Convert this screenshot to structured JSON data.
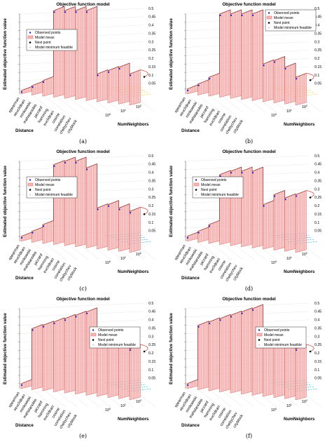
{
  "figure": {
    "panels": [
      {
        "caption": "(a)",
        "highlight": "#f0c419"
      },
      {
        "caption": "(b)",
        "highlight": "#f0c419"
      },
      {
        "caption": "(c)",
        "highlight": "#00a0e0"
      },
      {
        "caption": "(d)",
        "highlight": "#00a0e0"
      },
      {
        "caption": "(e)",
        "highlight": "#00c0c0"
      },
      {
        "caption": "(f)",
        "highlight": "#00c0c0"
      }
    ]
  },
  "chart_data": [
    {
      "type": "surface3d",
      "title": "Objective function model",
      "zlabel": "Estimated objective function value",
      "xlabel": "Distance",
      "ylabel": "NumNeighbors",
      "x_categories": [
        "spearman",
        "seuclidean",
        "minkowski",
        "mahalanobis",
        "jaccard",
        "hamming",
        "euclidean",
        "cosine",
        "correlation",
        "chebychev",
        "cityblock"
      ],
      "y_ticks": [
        "10^0",
        "10^1",
        "10^2"
      ],
      "z_ticks": [
        "0.05",
        "0.1",
        "0.15",
        "0.2",
        "0.25",
        "0.3",
        "0.35",
        "0.4",
        "0.45",
        "0.5"
      ],
      "zlim": [
        0.02,
        0.5
      ],
      "legend": [
        "Observed points",
        "Model mean",
        "Next point",
        "Model minimum feasible"
      ],
      "legend_position": "left",
      "colors": {
        "surface": "#d9534f",
        "surface_fill": "#f7b5b3",
        "points": "#1f1fd0"
      },
      "surface_peaks": [
        0.04,
        0.07,
        0.1,
        0.52,
        0.52,
        0.52,
        0.52,
        0.14,
        0.16,
        0.18,
        0.14
      ]
    },
    {
      "type": "surface3d",
      "title": "Objective function model",
      "zlabel": "Estimated objective function value",
      "xlabel": "Distance",
      "ylabel": "NumNeighbors",
      "x_categories": [
        "spearman",
        "seuclidean",
        "minkowski",
        "mahalanobis",
        "jaccard",
        "hamming",
        "euclidean",
        "cosine",
        "correlation",
        "chebychev",
        "cityblock"
      ],
      "y_ticks": [
        "10^0",
        "10^1",
        "10^2"
      ],
      "z_ticks": [
        "0.05",
        "0.1",
        "0.15",
        "0.2",
        "0.25",
        "0.3",
        "0.35",
        "0.4",
        "0.45",
        "0.5"
      ],
      "zlim": [
        0.02,
        0.5
      ],
      "legend": [
        "Observed points",
        "Model mean",
        "Next point",
        "Model minimum feasible"
      ],
      "legend_position": "top-right",
      "colors": {
        "surface": "#d9534f",
        "surface_fill": "#f7b5b3",
        "points": "#1f1fd0"
      },
      "surface_peaks": [
        0.05,
        0.08,
        0.12,
        0.5,
        0.5,
        0.5,
        0.5,
        0.2,
        0.22,
        0.18,
        0.12
      ]
    },
    {
      "type": "surface3d",
      "title": "Objective function model",
      "zlabel": "Estimated objective function value",
      "xlabel": "Distance",
      "ylabel": "NumNeighbors",
      "x_categories": [
        "spearman",
        "seuclidean",
        "minkowski",
        "mahalanobis",
        "jaccard",
        "hamming",
        "euclidean",
        "cosine",
        "correlation",
        "chebychev",
        "cityblock"
      ],
      "y_ticks": [
        "10^0",
        "10^1",
        "10^2"
      ],
      "z_ticks": [
        "0.05",
        "0.1",
        "0.15",
        "0.2",
        "0.25",
        "0.3",
        "0.35",
        "0.4",
        "0.45",
        "0.5"
      ],
      "zlim": [
        0.02,
        0.5
      ],
      "legend": [
        "Observed points",
        "Model mean",
        "Next point",
        "Model minimum feasible"
      ],
      "legend_position": "left",
      "colors": {
        "surface": "#d9534f",
        "surface_fill": "#f7b5b3",
        "points": "#1f1fd0"
      },
      "surface_peaks": [
        0.05,
        0.08,
        0.12,
        0.48,
        0.5,
        0.5,
        0.46,
        0.22,
        0.24,
        0.22,
        0.2
      ]
    },
    {
      "type": "surface3d",
      "title": "Objective function model",
      "zlabel": "Estimated objective function value",
      "xlabel": "Distance",
      "ylabel": "NumNeighbors",
      "x_categories": [
        "spearman",
        "seuclidean",
        "minkowski",
        "mahalanobis",
        "jaccard",
        "hamming",
        "euclidean",
        "cosine",
        "correlation",
        "chebychev",
        "cityblock"
      ],
      "y_ticks": [
        "10^0",
        "10^1",
        "10^2"
      ],
      "z_ticks": [
        "0.05",
        "0.1",
        "0.15",
        "0.2",
        "0.25",
        "0.3",
        "0.35",
        "0.4",
        "0.45",
        "0.5"
      ],
      "zlim": [
        0.02,
        0.5
      ],
      "legend": [
        "Observed points",
        "Model mean",
        "Next point",
        "Model minimum feasible"
      ],
      "legend_position": "left",
      "colors": {
        "surface": "#d9534f",
        "surface_fill": "#f7b5b3",
        "points": "#1f1fd0"
      },
      "surface_peaks": [
        0.05,
        0.08,
        0.12,
        0.42,
        0.44,
        0.44,
        0.44,
        0.24,
        0.3,
        0.28,
        0.3
      ]
    },
    {
      "type": "surface3d",
      "title": "Objective function model",
      "zlabel": "Estimated objective function value",
      "xlabel": "Distance",
      "ylabel": "NumNeighbors",
      "x_categories": [
        "spearman",
        "seuclidean",
        "minkowski",
        "mahalanobis",
        "jaccard",
        "hamming",
        "euclidean",
        "cosine",
        "correlation",
        "chebychev",
        "cityblock"
      ],
      "y_ticks": [
        "10^0",
        "10^1",
        "10^2"
      ],
      "z_ticks": [
        "0.05",
        "0.1",
        "0.15",
        "0.2",
        "0.25",
        "0.3",
        "0.35",
        "0.4",
        "0.45",
        "0.5"
      ],
      "zlim": [
        0.02,
        0.5
      ],
      "legend": [
        "Observed points",
        "Model mean",
        "Next point",
        "Model minimum feasible"
      ],
      "legend_position": "right",
      "colors": {
        "surface": "#d9534f",
        "surface_fill": "#f7b5b3",
        "points": "#1f1fd0"
      },
      "surface_peaks": [
        0.05,
        0.38,
        0.4,
        0.42,
        0.44,
        0.46,
        0.48,
        0.3,
        0.28,
        0.3,
        0.26
      ]
    },
    {
      "type": "surface3d",
      "title": "Objective function model",
      "zlabel": "Estimated objective function value",
      "xlabel": "Distance",
      "ylabel": "NumNeighbors",
      "x_categories": [
        "spearman",
        "seuclidean",
        "minkowski",
        "mahalanobis",
        "jaccard",
        "hamming",
        "euclidean",
        "cosine",
        "correlation",
        "chebychev",
        "cityblock"
      ],
      "y_ticks": [
        "10^0",
        "10^1",
        "10^2"
      ],
      "z_ticks": [
        "0.05",
        "0.1",
        "0.15",
        "0.2",
        "0.25",
        "0.3",
        "0.35",
        "0.4",
        "0.45",
        "0.5"
      ],
      "zlim": [
        0.02,
        0.5
      ],
      "legend": [
        "Observed points",
        "Model mean",
        "Next point",
        "Model minimum feasible"
      ],
      "legend_position": "right",
      "colors": {
        "surface": "#d9534f",
        "surface_fill": "#f7b5b3",
        "points": "#1f1fd0"
      },
      "surface_peaks": [
        0.05,
        0.4,
        0.42,
        0.44,
        0.46,
        0.48,
        0.5,
        0.3,
        0.28,
        0.3,
        0.26
      ]
    }
  ]
}
